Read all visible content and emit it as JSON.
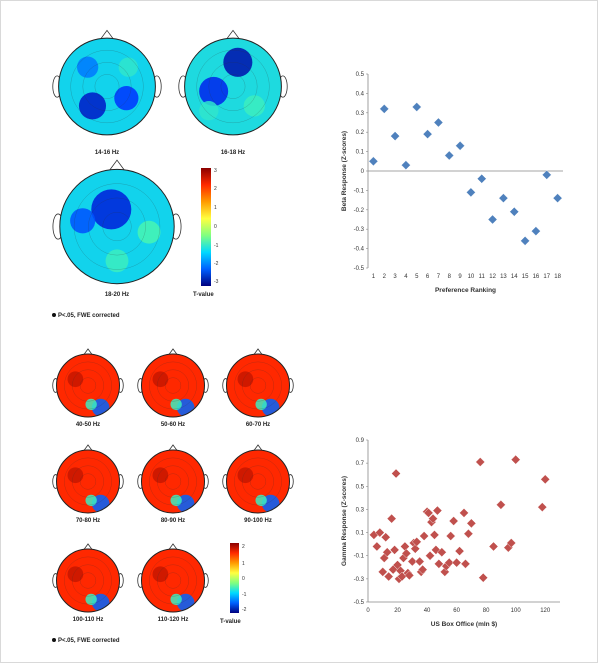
{
  "top_panel": {
    "maps": [
      {
        "label": "14-16 Hz",
        "scheme": "cool"
      },
      {
        "label": "16-18 Hz",
        "scheme": "cool"
      },
      {
        "label": "18-20 Hz",
        "scheme": "cool"
      }
    ],
    "colorbar": {
      "title": "T-value",
      "ticks": [
        "3",
        "2",
        "1",
        "0",
        "-1",
        "-2",
        "-3"
      ]
    },
    "sig_note": "P<.05, FWE corrected"
  },
  "bottom_panel": {
    "maps": [
      {
        "label": "40-50 Hz",
        "scheme": "warm"
      },
      {
        "label": "50-60 Hz",
        "scheme": "warm"
      },
      {
        "label": "60-70 Hz",
        "scheme": "warm"
      },
      {
        "label": "70-80 Hz",
        "scheme": "warm"
      },
      {
        "label": "80-90 Hz",
        "scheme": "warm"
      },
      {
        "label": "90-100 Hz",
        "scheme": "warm"
      },
      {
        "label": "100-110 Hz",
        "scheme": "warm"
      },
      {
        "label": "110-120 Hz",
        "scheme": "warm"
      }
    ],
    "colorbar": {
      "title": "T-value",
      "ticks": [
        "2",
        "1",
        "0",
        "-1",
        "-2"
      ]
    },
    "sig_note": "P<.05, FWE corrected"
  },
  "chart_data": [
    {
      "type": "scatter",
      "title": "",
      "xlabel": "Preference Ranking",
      "ylabel": "Beta Response (Z-scores)",
      "x": [
        1,
        2,
        3,
        4,
        5,
        6,
        7,
        8,
        9,
        10,
        11,
        12,
        13,
        14,
        15,
        16,
        17,
        18
      ],
      "y": [
        0.05,
        0.32,
        0.18,
        0.03,
        0.33,
        0.19,
        0.25,
        0.08,
        0.13,
        -0.11,
        -0.04,
        -0.25,
        -0.14,
        -0.21,
        -0.36,
        -0.31,
        -0.02,
        -0.14
      ],
      "xticks": [
        "1",
        "2",
        "3",
        "4",
        "5",
        "6",
        "7",
        "8",
        "9",
        "10",
        "11",
        "12",
        "13",
        "14",
        "15",
        "16",
        "17",
        "18"
      ],
      "yticks": [
        "0.5",
        "0.4",
        "0.3",
        "0.2",
        "0.1",
        "0",
        "-0.1",
        "-0.2",
        "-0.3",
        "-0.4",
        "-0.5"
      ],
      "xlim": [
        0.5,
        18.5
      ],
      "ylim": [
        -0.5,
        0.5
      ],
      "marker_color": "#4f81bd"
    },
    {
      "type": "scatter",
      "title": "",
      "xlabel": "US Box Office (mln $)",
      "ylabel": "Gamma Response (Z-scores)",
      "x": [
        4,
        6,
        8,
        10,
        11,
        12,
        13,
        14,
        16,
        17,
        18,
        19,
        20,
        21,
        22,
        23,
        24,
        25,
        26,
        27,
        28,
        30,
        31,
        32,
        33,
        35,
        36,
        37,
        38,
        40,
        41,
        42,
        43,
        44,
        45,
        46,
        47,
        48,
        50,
        52,
        53,
        55,
        56,
        58,
        60,
        62,
        65,
        66,
        68,
        70,
        76,
        78,
        85,
        90,
        95,
        97,
        100,
        118,
        120
      ],
      "y": [
        0.08,
        -0.02,
        0.1,
        -0.24,
        -0.12,
        0.06,
        -0.07,
        -0.28,
        0.22,
        -0.22,
        -0.05,
        0.61,
        -0.18,
        -0.3,
        -0.23,
        -0.28,
        -0.12,
        -0.02,
        -0.08,
        -0.25,
        -0.27,
        -0.15,
        0.01,
        -0.04,
        0.02,
        -0.15,
        -0.24,
        -0.22,
        0.07,
        0.28,
        0.27,
        -0.1,
        0.19,
        0.22,
        0.08,
        -0.05,
        0.29,
        -0.17,
        -0.07,
        -0.24,
        -0.19,
        -0.16,
        0.07,
        0.2,
        -0.16,
        -0.06,
        0.27,
        -0.17,
        0.09,
        0.18,
        0.71,
        -0.29,
        -0.02,
        0.34,
        -0.03,
        0.01,
        0.73,
        0.32,
        0.56
      ],
      "xticks": [
        "0",
        "20",
        "40",
        "60",
        "80",
        "100",
        "120"
      ],
      "yticks": [
        "0.9",
        "0.7",
        "0.5",
        "0.3",
        "0.1",
        "-0.1",
        "-0.3",
        "-0.5"
      ],
      "xlim": [
        0,
        130
      ],
      "ylim": [
        -0.5,
        0.9
      ],
      "marker_color": "#c0504d"
    }
  ]
}
